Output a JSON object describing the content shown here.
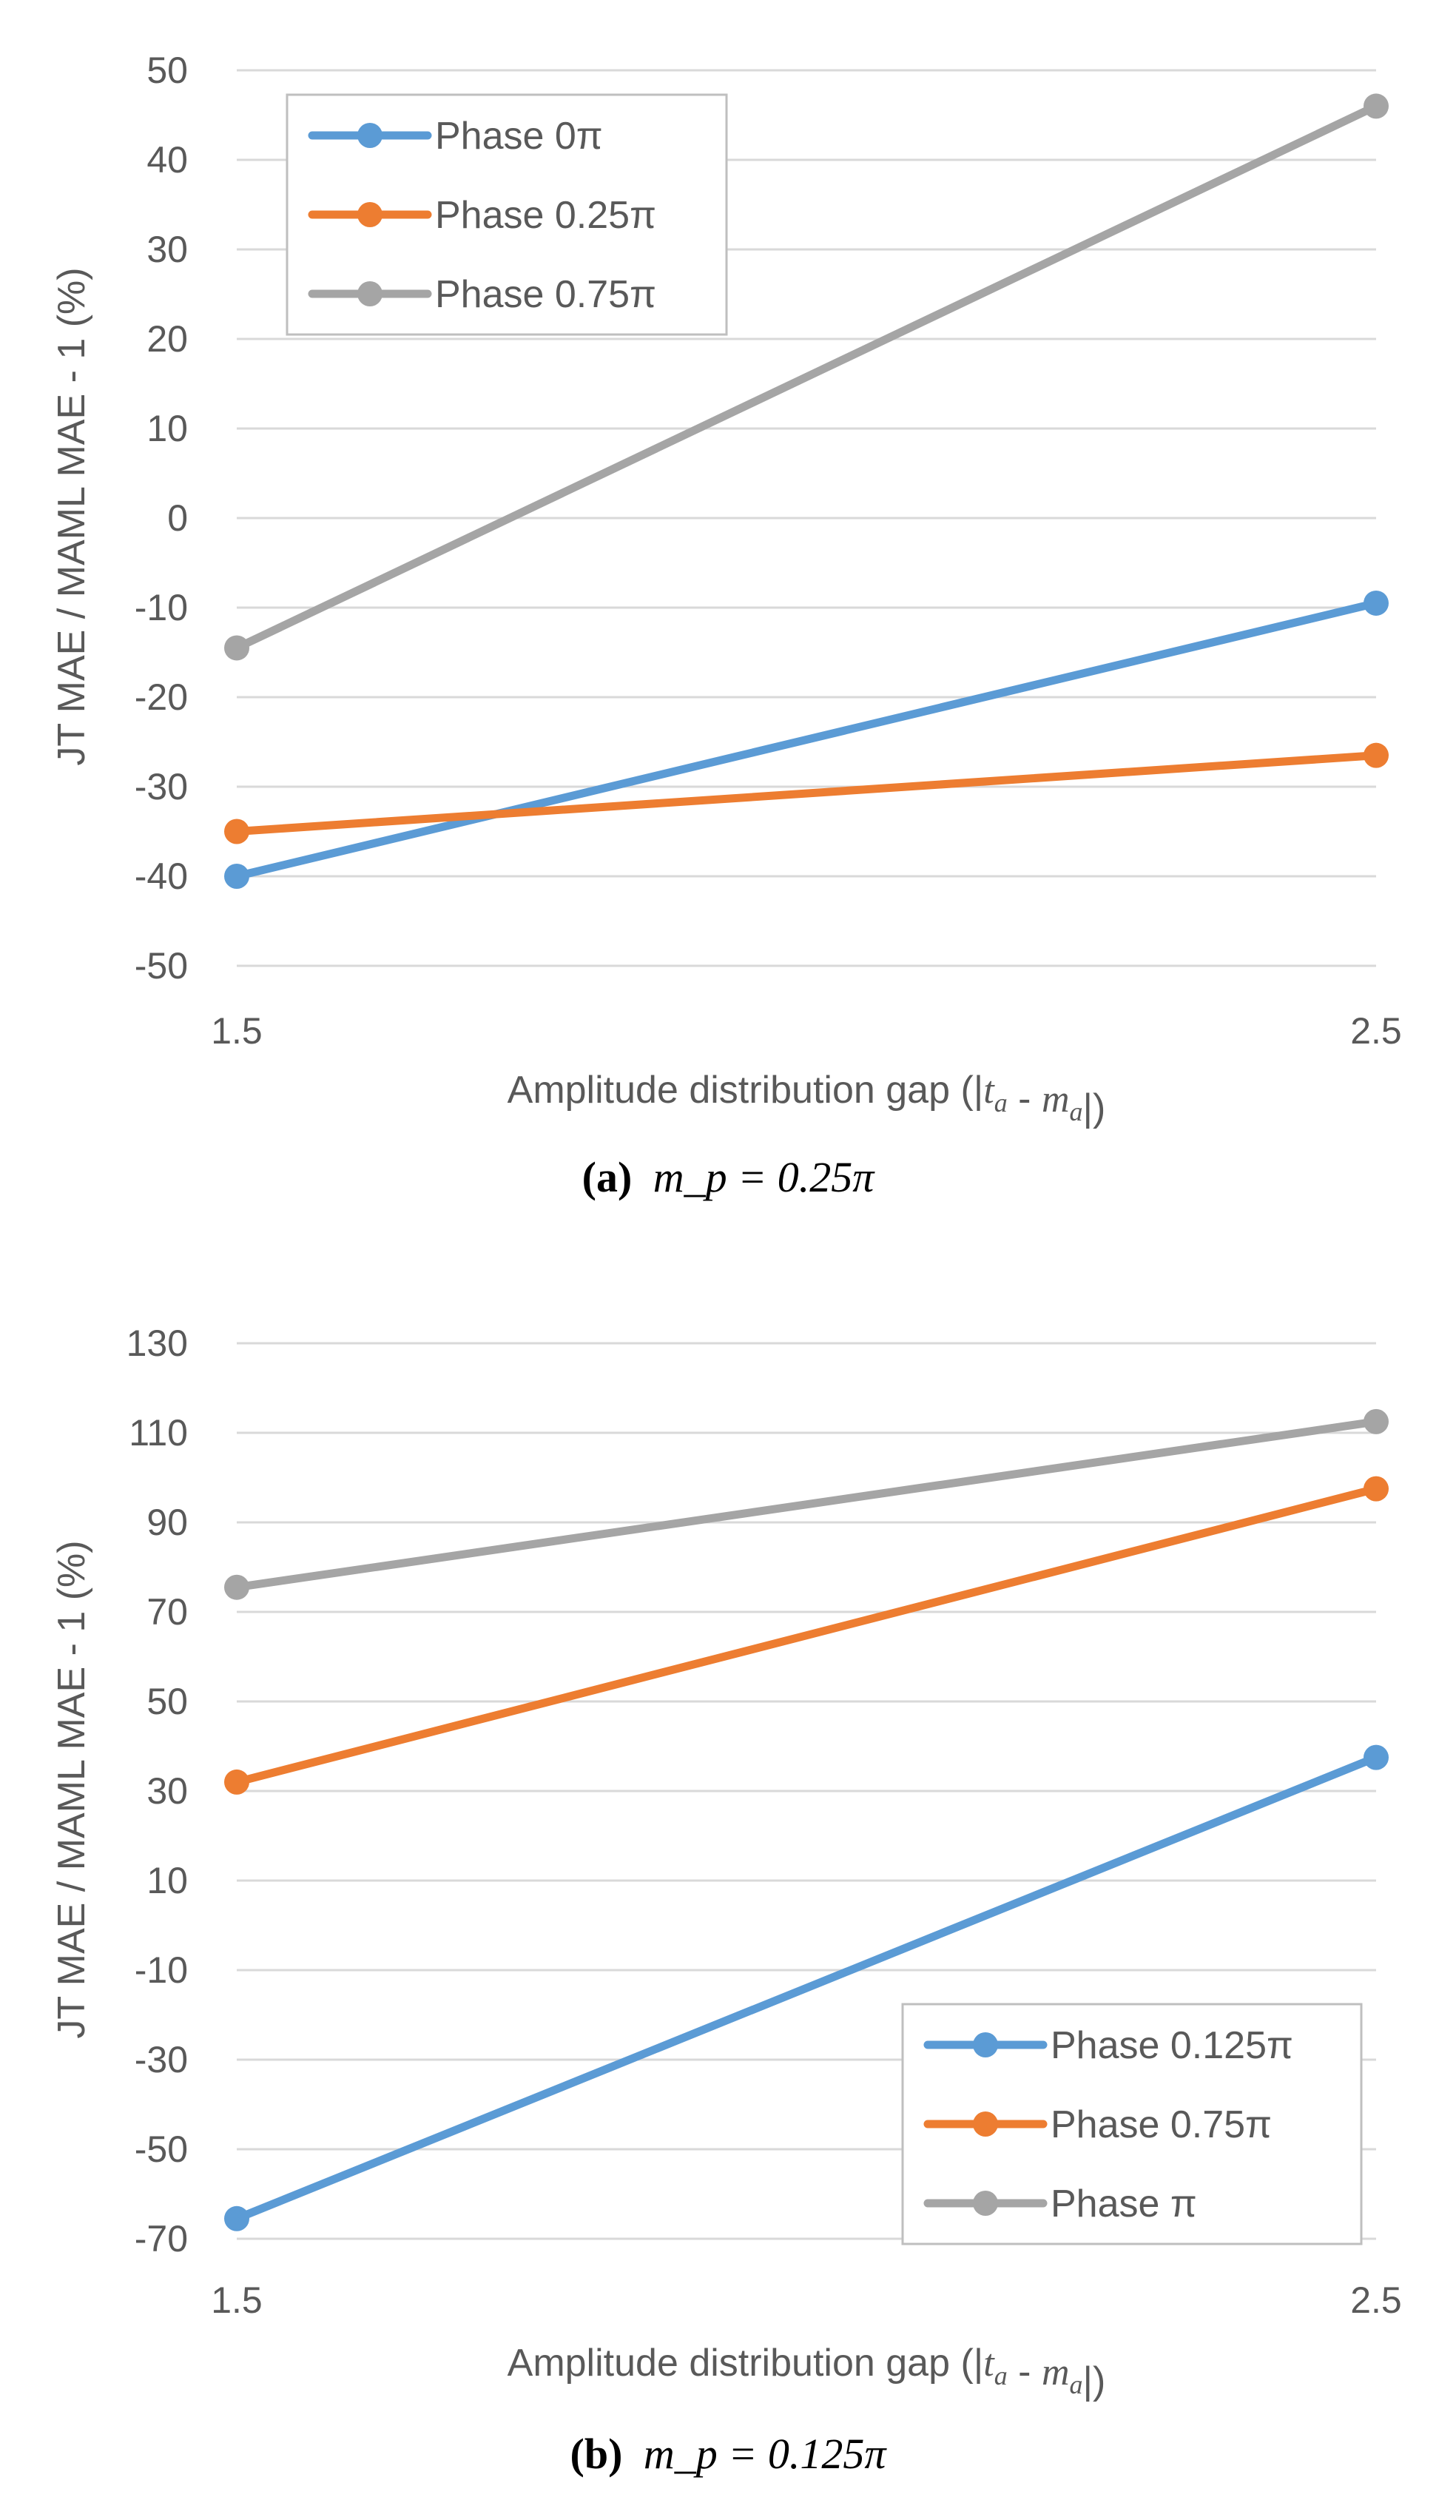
{
  "chart_data": [
    {
      "type": "line",
      "x": [
        1.5,
        2.5
      ],
      "x_tick_labels": [
        "1.5",
        "2.5"
      ],
      "y_ticks": [
        50,
        40,
        30,
        20,
        10,
        0,
        -10,
        -20,
        -30,
        -40,
        -50
      ],
      "ylim": [
        -50,
        50
      ],
      "xlabel": "Amplitude distribution gap (|t_a - m_a|)",
      "ylabel": "JT MAE / MAML MAE - 1 (%)",
      "grid": true,
      "legend_position": "top-left",
      "series": [
        {
          "name": "Phase 0π",
          "color": "#5b9bd5",
          "values": [
            -40,
            -9.5
          ]
        },
        {
          "name": "Phase 0.25π",
          "color": "#ed7d31",
          "values": [
            -35,
            -26.5
          ]
        },
        {
          "name": "Phase 0.75π",
          "color": "#a5a5a5",
          "values": [
            -14.5,
            46
          ]
        }
      ],
      "caption": {
        "label": "(a)",
        "math": "m_p = 0.25π"
      }
    },
    {
      "type": "line",
      "x": [
        1.5,
        2.5
      ],
      "x_tick_labels": [
        "1.5",
        "2.5"
      ],
      "y_ticks": [
        130,
        110,
        90,
        70,
        50,
        30,
        10,
        -10,
        -30,
        -50,
        -70
      ],
      "ylim": [
        -70,
        130
      ],
      "xlabel": "Amplitude distribution gap (|t_a - m_a|)",
      "ylabel": "JT MAE / MAML MAE - 1 (%)",
      "grid": true,
      "legend_position": "bottom-right",
      "series": [
        {
          "name": "Phase 0.125π",
          "color": "#5b9bd5",
          "values": [
            -65.5,
            37.5
          ]
        },
        {
          "name": "Phase 0.75π",
          "color": "#ed7d31",
          "values": [
            32,
            97.5
          ]
        },
        {
          "name": "Phase π",
          "color": "#a5a5a5",
          "values": [
            75.5,
            112.5
          ]
        }
      ],
      "caption": {
        "label": "(b)",
        "math": "m_p = 0.125π"
      }
    }
  ]
}
